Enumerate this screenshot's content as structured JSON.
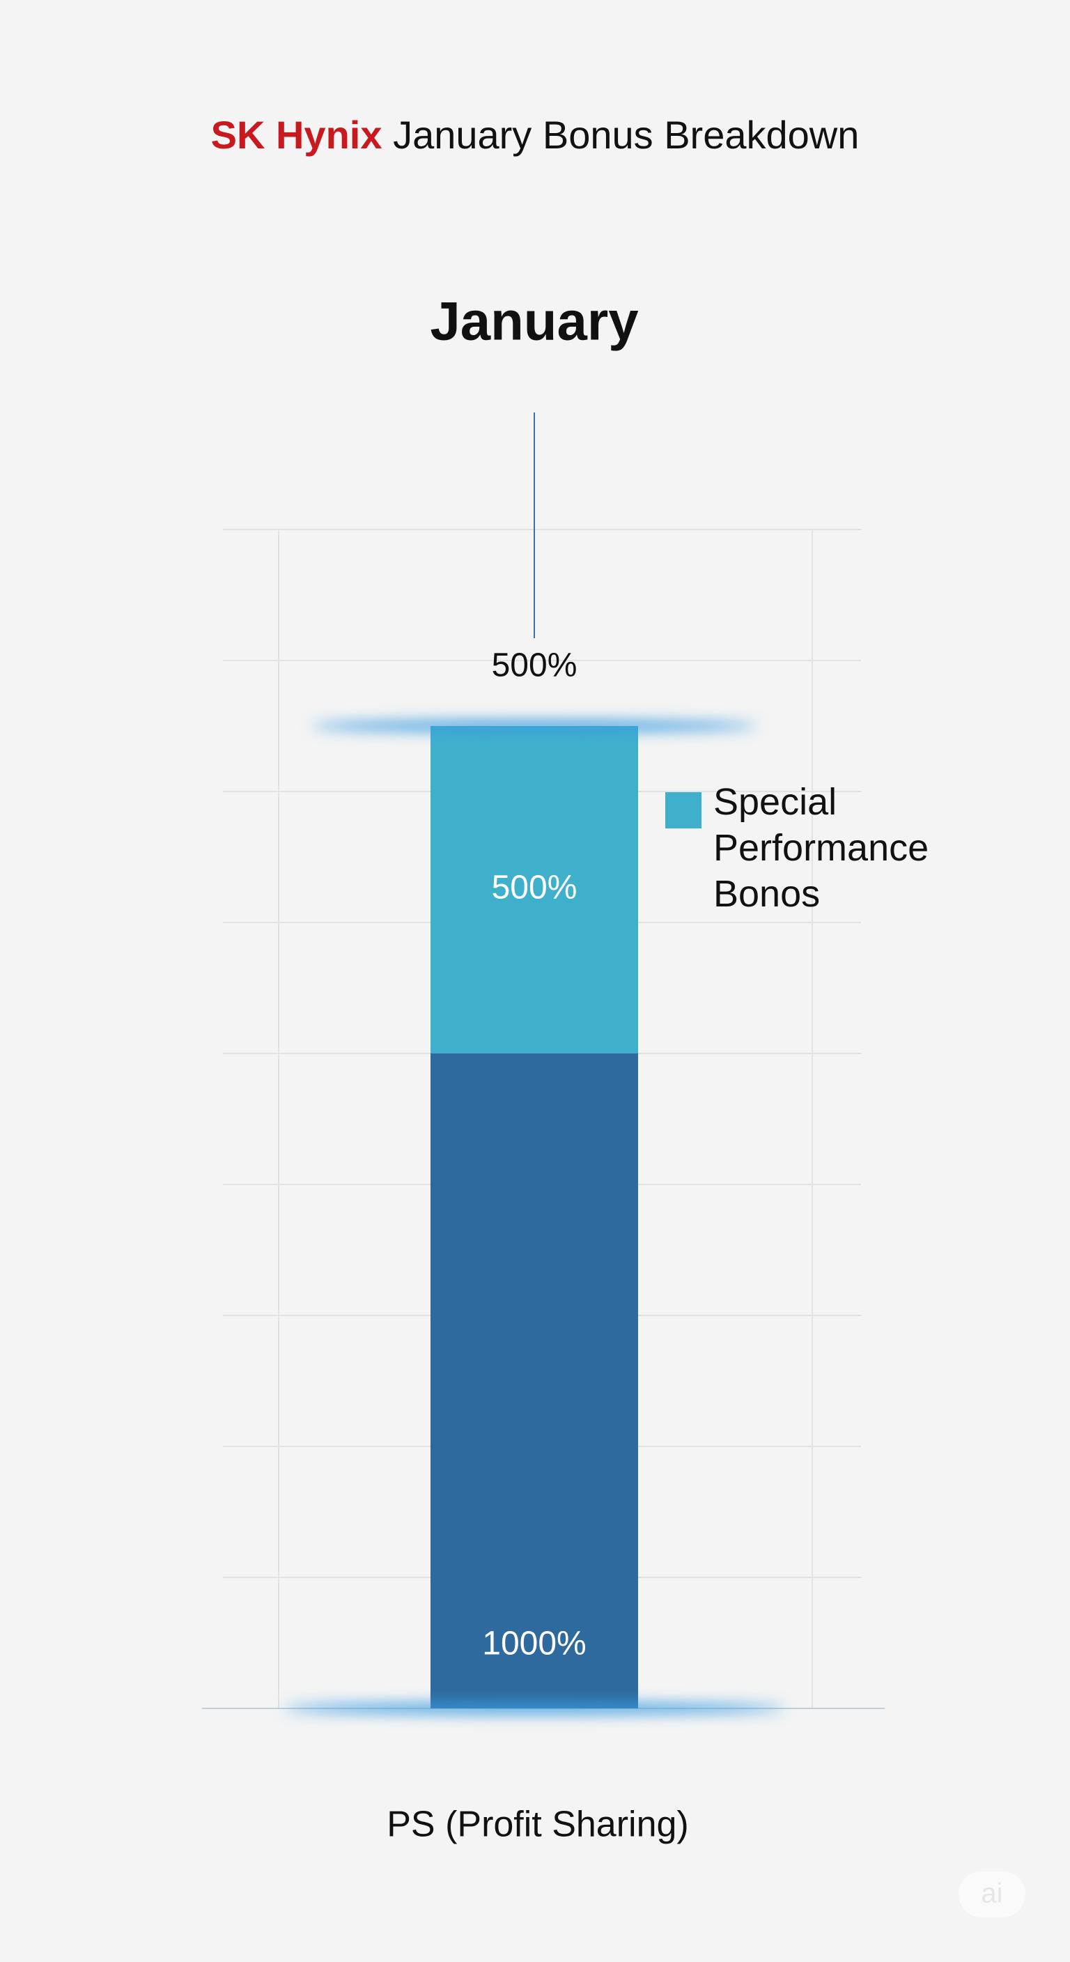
{
  "chart_data": {
    "type": "stacked_bar",
    "title_highlight": "SK Hynix",
    "title_highlight_color": "#c8191e",
    "title": "January Bonus Breakdown",
    "categories": [
      "January"
    ],
    "series": [
      {
        "name": "PS (Profit Sharing)",
        "color": "#2f6a9e",
        "values": [
          1000
        ],
        "value_labels": [
          "1000%"
        ]
      },
      {
        "name": "Special Performance Bonos",
        "color": "#3fb0cc",
        "values": [
          500
        ],
        "value_labels": [
          "500%"
        ]
      }
    ],
    "annotations": [
      "500%"
    ],
    "ylim": [
      0,
      1800
    ],
    "watermark": "ai"
  }
}
